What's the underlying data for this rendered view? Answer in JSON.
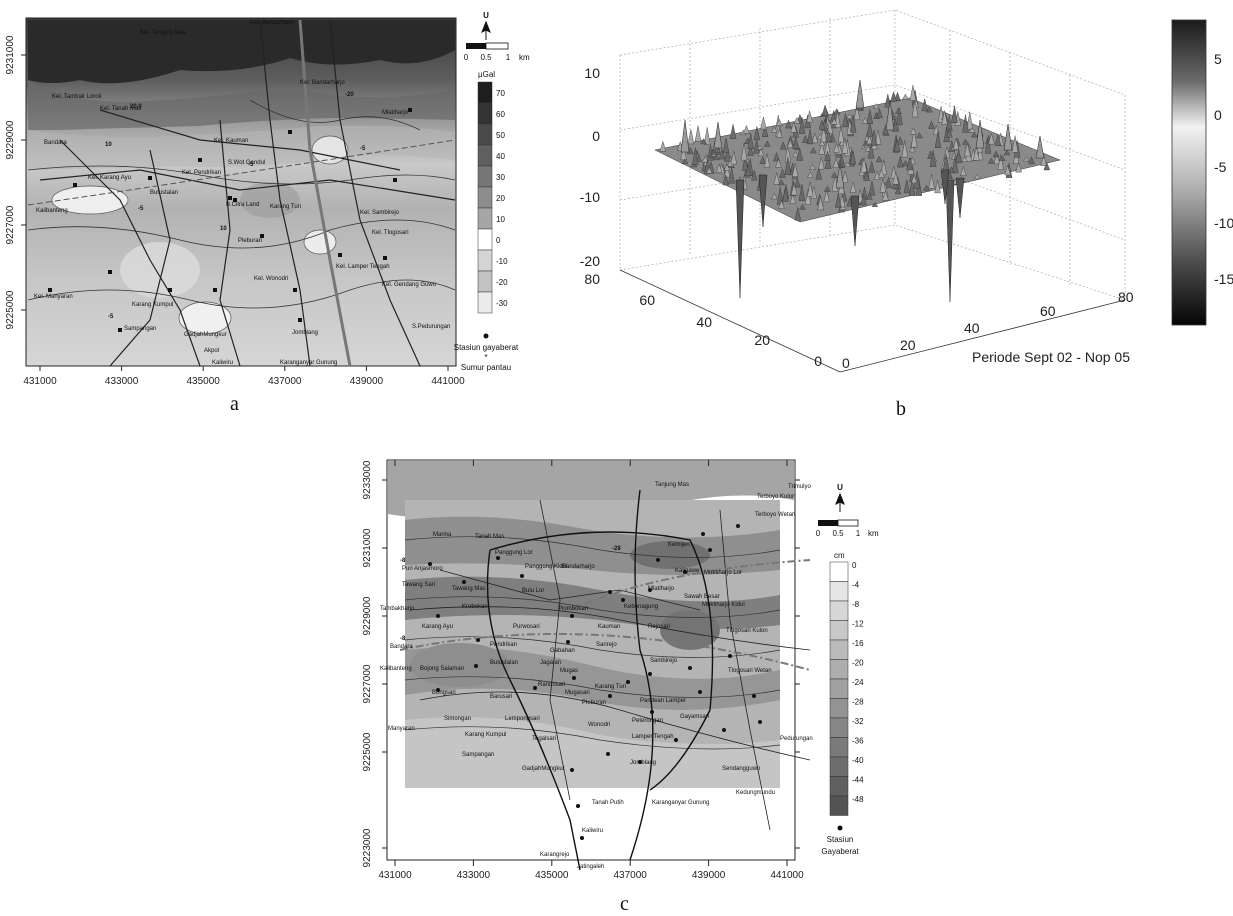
{
  "panel_a": {
    "caption": "a",
    "x_ticks": [
      "431000",
      "433000",
      "435000",
      "437000",
      "439000",
      "441000"
    ],
    "y_ticks": [
      "9231000",
      "9229000",
      "9227000",
      "9225000"
    ],
    "north": "U",
    "scale_labels": [
      "0",
      "0.5",
      "1",
      "km"
    ],
    "unit": "µGal",
    "legend_values": [
      "70",
      "60",
      "50",
      "40",
      "30",
      "20",
      "10",
      "0",
      "-10",
      "-20",
      "-30"
    ],
    "marker_labels": {
      "station": "Stasiun gayaberat",
      "well": "Sumur pantau"
    },
    "contour_labels": [
      "-20",
      "20.0",
      "-5",
      "10",
      "-5",
      "-5",
      "10",
      "-5"
    ],
    "places": [
      "Kel. Tanjung Mas",
      "Kel. Bandarharjo",
      "Kel. Tambak Lorok",
      "Kel. Tanah Mas",
      "Kel. Bandarharjo",
      "Mlatiharjo",
      "Bandara",
      "Kel. Kauman",
      "S.Wot Gandul",
      "Kel. Karang Ayu",
      "Kel. Pendrikan",
      "Bulustalan",
      "Kel. Sambirejo",
      "Kalibanteng",
      "B.Citra Land",
      "Karang Turi",
      "Kel. Tlogosari",
      "Pleburan",
      "Kel. Lamper Tengah",
      "Kel. Wonodri",
      "Kel. Gendang Guwo",
      "Kel. Manyaran",
      "Karang Kumpul",
      "Sampangan",
      "GadjahMungkur",
      "Jomblang",
      "S.Pedurungan",
      "Akpol",
      "Kaliwiru",
      "Karanganyar Gunung"
    ]
  },
  "panel_b": {
    "caption": "b",
    "period_label": "Periode Sept 02 - Nop 05",
    "z_ticks": [
      "10",
      "0",
      "-10",
      "-20"
    ],
    "x_ticks": [
      "0",
      "20",
      "40",
      "60",
      "80"
    ],
    "y_ticks": [
      "0",
      "20",
      "40",
      "60",
      "80"
    ],
    "colorbar_ticks": [
      "5",
      "0",
      "-5",
      "-10",
      "-15"
    ]
  },
  "panel_c": {
    "caption": "c",
    "x_ticks": [
      "431000",
      "433000",
      "435000",
      "437000",
      "439000",
      "441000"
    ],
    "y_ticks": [
      "9233000",
      "9231000",
      "9229000",
      "9227000",
      "9225000",
      "9223000"
    ],
    "north": "U",
    "scale_labels": [
      "0",
      "0.5",
      "1",
      "km"
    ],
    "unit": "cm",
    "legend_values": [
      "0",
      "-4",
      "-8",
      "-12",
      "-16",
      "-20",
      "-24",
      "-28",
      "-32",
      "-36",
      "-40",
      "-44",
      "-48"
    ],
    "marker_label": "Stasiun Gayaberat",
    "contour_labels": [
      "-28",
      "-8",
      "-8"
    ],
    "places": [
      "Tanjung Mas",
      "Terboyo Kulon",
      "Trimulyo",
      "Marina",
      "Tanah Mas",
      "Terboyo Wetan",
      "Panggung Lor",
      "Panggung Kidul",
      "Bandarharjo",
      "Kemijen",
      "Kaligawe",
      "Muktiharjo Lor",
      "Puri Anjasmoro",
      "Tawang Sari",
      "Tawang Mas",
      "Bulu Lor",
      "Mlatiharjo",
      "Sawah Besar",
      "Muktiharjo Kidul",
      "Tambakharjo",
      "Krobokan",
      "Plombokan",
      "Kebonagung",
      "Karang Ayu",
      "Purwosari",
      "Kauman",
      "Rejosari",
      "Tlogosari Kulon",
      "Bandara",
      "Pendrikan",
      "Gabahan",
      "Jagalan",
      "Sarirejo",
      "Kalibanteng",
      "Bojong Salaman",
      "Bulustalan",
      "Mugas",
      "Sambirejo",
      "Tlogosari Wetan",
      "Bongsari",
      "Barusari",
      "Karang Turi",
      "Pandean Lamper",
      "Simongan",
      "Lempongsari",
      "Wonodri",
      "Peterongan",
      "Gayamsari",
      "Manyaran",
      "Karang Kumpul",
      "Tegalsari",
      "Lamper Tengah",
      "Pedurungan",
      "Sampangan",
      "GadjahMungkur",
      "Jomblang",
      "Sendangguwo",
      "Tanah Putih",
      "Karanganyar Gunung",
      "Kedungmundu",
      "Kaliwiru",
      "Karangrejo",
      "Jatingaleh",
      "Pleburan",
      "Mugasari",
      "Randusari"
    ]
  }
}
